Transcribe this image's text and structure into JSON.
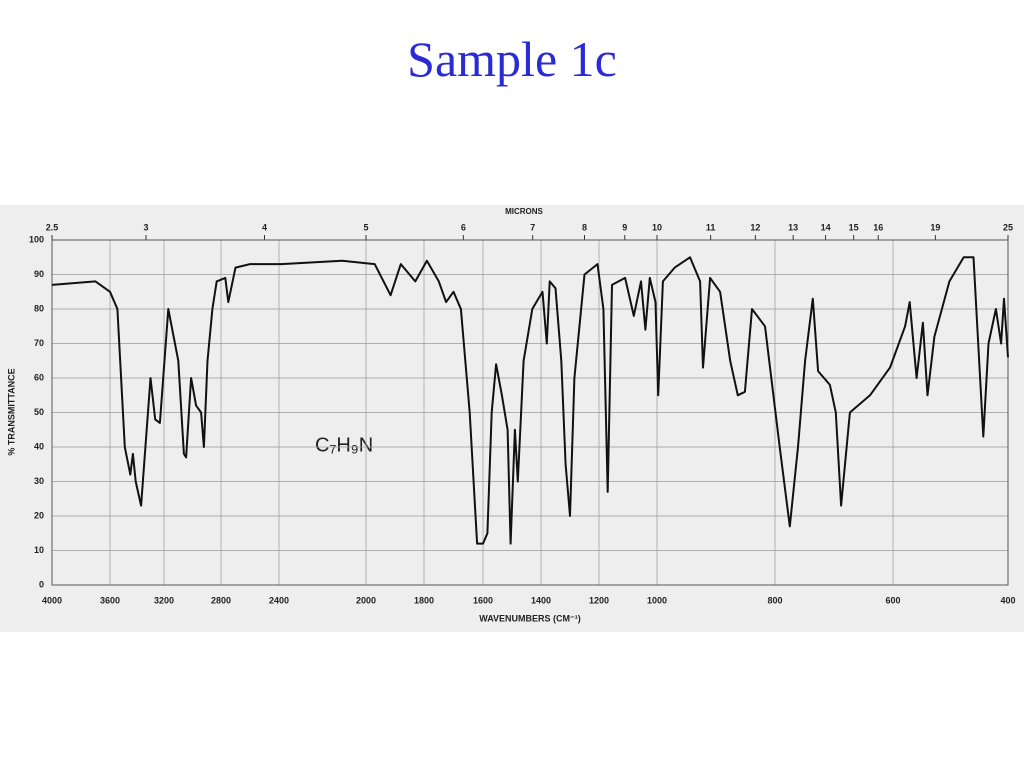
{
  "chart_data": {
    "type": "line",
    "title": "Sample 1c",
    "annotation": "C₇H₉N",
    "x_label": "WAVENUMBERS (CM⁻¹)",
    "y_label": "% TRANSMITTANCE",
    "x2_label": "MICRONS",
    "xlim": [
      4000,
      400
    ],
    "xticks": [
      4000,
      3600,
      3200,
      2800,
      2400,
      2000,
      1800,
      1600,
      1400,
      1200,
      1000,
      800,
      600,
      400
    ],
    "ylim": [
      0,
      100
    ],
    "yticks": [
      0,
      10,
      20,
      30,
      40,
      50,
      60,
      70,
      80,
      90,
      100
    ],
    "x2ticks": [
      2.5,
      3,
      4,
      5,
      6,
      7,
      8,
      9,
      10,
      11,
      12,
      13,
      14,
      15,
      16,
      19,
      25
    ],
    "grid": true,
    "color": "#111111",
    "x": [
      4000,
      3700,
      3600,
      3545,
      3490,
      3450,
      3430,
      3410,
      3370,
      3300,
      3265,
      3230,
      3170,
      3100,
      3060,
      3045,
      3010,
      2975,
      2940,
      2920,
      2895,
      2860,
      2830,
      2770,
      2750,
      2700,
      2600,
      2390,
      2110,
      1970,
      1915,
      1880,
      1830,
      1790,
      1750,
      1725,
      1700,
      1675,
      1645,
      1620,
      1600,
      1585,
      1570,
      1555,
      1535,
      1515,
      1505,
      1490,
      1480,
      1460,
      1430,
      1395,
      1380,
      1370,
      1350,
      1330,
      1315,
      1300,
      1285,
      1250,
      1205,
      1185,
      1170,
      1155,
      1110,
      1080,
      1055,
      1040,
      1025,
      1005,
      998,
      990,
      970,
      944,
      927,
      922,
      910,
      893,
      876,
      863,
      851,
      839,
      817,
      792,
      775,
      761,
      749,
      736,
      727,
      707,
      697,
      688,
      673,
      639,
      605,
      579,
      571,
      559,
      548,
      540,
      528,
      502,
      477,
      460,
      443,
      434,
      421,
      412,
      407,
      400
    ],
    "values": [
      87,
      88,
      85,
      80,
      40,
      32,
      38,
      30,
      23,
      60,
      48,
      47,
      80,
      65,
      38,
      37,
      60,
      52,
      50,
      40,
      65,
      80,
      88,
      89,
      82,
      92,
      93,
      93,
      94,
      93,
      84,
      93,
      88,
      94,
      88,
      82,
      85,
      80,
      50,
      12,
      12,
      15,
      50,
      64,
      55,
      45,
      12,
      45,
      30,
      65,
      80,
      85,
      70,
      88,
      86,
      65,
      35,
      20,
      60,
      90,
      93,
      80,
      27,
      87,
      89,
      78,
      88,
      74,
      89,
      82,
      55,
      88,
      92,
      95,
      88,
      63,
      89,
      85,
      65,
      55,
      56,
      80,
      75,
      40,
      17,
      40,
      65,
      83,
      62,
      58,
      50,
      23,
      50,
      55,
      63,
      75,
      82,
      60,
      76,
      55,
      72,
      88,
      95,
      95,
      43,
      70,
      80,
      70,
      83,
      66
    ]
  }
}
